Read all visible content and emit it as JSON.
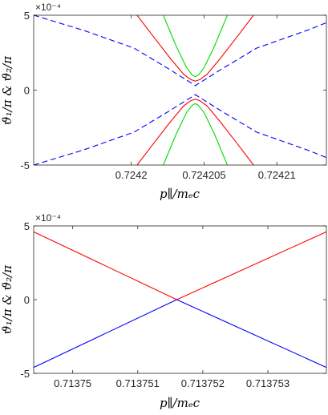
{
  "chart_data": [
    {
      "type": "line",
      "xlabel": "p∥/mₑc",
      "ylabel": "ϑ₁/π & ϑ₂/π",
      "y_multiplier": "×10⁻⁴",
      "xlim": [
        0.7241933,
        0.7242134
      ],
      "ylim": [
        -5,
        5
      ],
      "xticks": [
        0.7242,
        0.724205,
        0.72421
      ],
      "xtick_labels": [
        "0.7242",
        "0.724205",
        "0.72421"
      ],
      "yticks": [
        -5,
        0,
        5
      ],
      "ytick_labels": [
        "-5",
        "0",
        "5"
      ],
      "grid": false,
      "series": [
        {
          "style": "dashed",
          "color": "#0000ff",
          "branch": "upper",
          "x": [
            0.7241933,
            0.7241967,
            0.7242002,
            0.7242026,
            0.724204,
            0.7242044,
            0.7242048,
            0.7242062,
            0.7242086,
            0.7242121,
            0.7242134
          ],
          "values": [
            5.0,
            4.0,
            2.8,
            1.4,
            0.55,
            0.3,
            0.55,
            1.4,
            2.8,
            4.0,
            4.5
          ]
        },
        {
          "style": "dashed",
          "color": "#0000ff",
          "branch": "lower",
          "x": [
            0.7241933,
            0.7241967,
            0.7242002,
            0.7242026,
            0.724204,
            0.7242044,
            0.7242048,
            0.7242062,
            0.7242086,
            0.7242121,
            0.7242134
          ],
          "values": [
            -5.0,
            -4.0,
            -2.8,
            -1.4,
            -0.55,
            -0.3,
            -0.55,
            -1.4,
            -2.8,
            -4.0,
            -4.5
          ]
        },
        {
          "style": "solid",
          "color": "#ff0000",
          "branch": "upper",
          "x": [
            0.7242004,
            0.7242015,
            0.7242027,
            0.7242036,
            0.7242041,
            0.7242044,
            0.7242047,
            0.7242052,
            0.7242061,
            0.7242073,
            0.7242084
          ],
          "values": [
            5.0,
            3.6,
            2.1,
            1.05,
            0.7,
            0.6,
            0.7,
            1.05,
            2.1,
            3.6,
            5.0
          ]
        },
        {
          "style": "solid",
          "color": "#ff0000",
          "branch": "lower",
          "x": [
            0.7242004,
            0.7242015,
            0.7242027,
            0.7242036,
            0.7242041,
            0.7242044,
            0.7242047,
            0.7242052,
            0.7242061,
            0.7242073,
            0.7242084
          ],
          "values": [
            -5.0,
            -3.6,
            -2.1,
            -1.05,
            -0.7,
            -0.6,
            -0.7,
            -1.05,
            -2.1,
            -3.6,
            -5.0
          ]
        },
        {
          "style": "solid",
          "color": "#00dd00",
          "branch": "upper",
          "x": [
            0.7242022,
            0.7242031,
            0.7242038,
            0.7242042,
            0.7242044,
            0.7242046,
            0.724205,
            0.7242057,
            0.7242066
          ],
          "values": [
            5.0,
            2.9,
            1.5,
            1.0,
            0.9,
            1.0,
            1.5,
            2.9,
            5.0
          ]
        },
        {
          "style": "solid",
          "color": "#00dd00",
          "branch": "lower",
          "x": [
            0.7242022,
            0.7242031,
            0.7242038,
            0.7242042,
            0.7242044,
            0.7242046,
            0.724205,
            0.7242057,
            0.7242066
          ],
          "values": [
            -5.0,
            -2.9,
            -1.5,
            -1.0,
            -0.9,
            -1.0,
            -1.5,
            -2.9,
            -5.0
          ]
        }
      ]
    },
    {
      "type": "line",
      "xlabel": "p∥/mₑc",
      "ylabel": "ϑ₁/π & ϑ₂/π",
      "y_multiplier": "×10⁻⁴",
      "xlim": [
        0.7137494,
        0.7137539
      ],
      "ylim": [
        -5,
        5
      ],
      "xticks": [
        0.71375,
        0.713751,
        0.713752,
        0.713753
      ],
      "xtick_labels": [
        "0.71375",
        "0.713751",
        "0.713752",
        "0.713753"
      ],
      "yticks": [
        -5,
        0,
        5
      ],
      "ytick_labels": [
        "-5",
        "0",
        "5"
      ],
      "grid": false,
      "series": [
        {
          "style": "solid",
          "color": "#ff0000",
          "x": [
            0.7137494,
            0.7137516,
            0.7137539
          ],
          "values": [
            4.6,
            0.0,
            4.6
          ]
        },
        {
          "style": "solid",
          "color": "#0000ff",
          "x": [
            0.7137494,
            0.7137516,
            0.7137539
          ],
          "values": [
            -4.6,
            0.0,
            -4.6
          ]
        }
      ]
    }
  ]
}
